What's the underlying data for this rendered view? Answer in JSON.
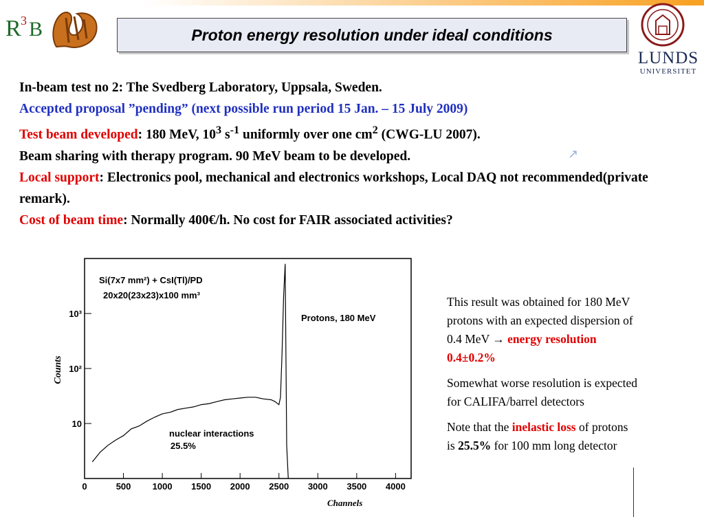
{
  "header": {
    "title": "Proton energy resolution under ideal conditions",
    "logo_text": "R3B",
    "university_line1": "LUNDS",
    "university_line2": "UNIVERSITET"
  },
  "body": {
    "line1": "In-beam test no 2: The Svedberg Laboratory, Uppsala, Sweden.",
    "line2": "Accepted proposal ”pending” (next possible run period 15 Jan. – 15 July 2009)",
    "line3_label": "Test beam developed",
    "line3_pre": ": 180 MeV, 10",
    "line3_sup1": "3",
    "line3_mid": " s",
    "line3_sup2": "-1",
    "line3_mid2": " uniformly over one cm",
    "line3_sup3": "2",
    "line3_post": " (CWG-LU 2007).",
    "line4": "Beam sharing with therapy program. 90 MeV beam to be developed.",
    "line5_label": "Local support",
    "line5_text": ": Electronics pool, mechanical and electronics workshops, Local DAQ not recommended(private remark).",
    "line6_label": "Cost of beam time",
    "line6_text": ": Normally 400€/h. No cost for FAIR associated activities?"
  },
  "side": {
    "p1_text": "This result was obtained for 180 MeV protons with an expected dispersion of 0.4 MeV ",
    "p1_arrow": "→",
    "p1_highlight": "energy resolution 0.4±0.2%",
    "p2": "Somewhat worse resolution is expected for CALIFA/barrel detectors",
    "p3_pre": "Note that the ",
    "p3_highlight": "inelastic loss",
    "p3_mid": " of protons is ",
    "p3_bold": "25.5%",
    "p3_post": " for 100 mm long detector"
  },
  "chart_data": {
    "type": "line",
    "xlabel": "Channels",
    "ylabel": "Counts",
    "log_y": true,
    "xlim": [
      0,
      4200
    ],
    "ylim": [
      1,
      10000
    ],
    "x_ticks": [
      0,
      500,
      1000,
      1500,
      2000,
      2500,
      3000,
      3500,
      4000
    ],
    "y_ticks": [
      {
        "value": 10,
        "label": "10"
      },
      {
        "value": 100,
        "label": "10²"
      },
      {
        "value": 1000,
        "label": "10³"
      }
    ],
    "annotations": {
      "detector_line1": "Si(7x7 mm²) + CsI(Tl)/PD",
      "detector_line2": "20x20(23x23)x100 mm³",
      "peak_label": "Protons,  180 MeV",
      "tail_label1": "nuclear interactions",
      "tail_label2": "25.5%"
    },
    "series": [
      {
        "x": [
          100,
          200,
          300,
          400,
          500,
          600,
          700,
          800,
          900,
          1000,
          1100,
          1200,
          1300,
          1400,
          1500,
          1600,
          1700,
          1800,
          1900,
          2000,
          2100,
          2200,
          2300,
          2400,
          2450,
          2500,
          2520,
          2540,
          2560,
          2580,
          2600,
          2620
        ],
        "values": [
          2,
          3,
          4,
          5,
          6,
          8,
          9,
          11,
          13,
          15,
          16,
          18,
          19,
          20,
          22,
          23,
          25,
          27,
          28,
          29,
          30,
          30,
          28,
          27,
          25,
          22,
          30,
          200,
          2000,
          8000,
          4,
          1
        ]
      }
    ]
  }
}
